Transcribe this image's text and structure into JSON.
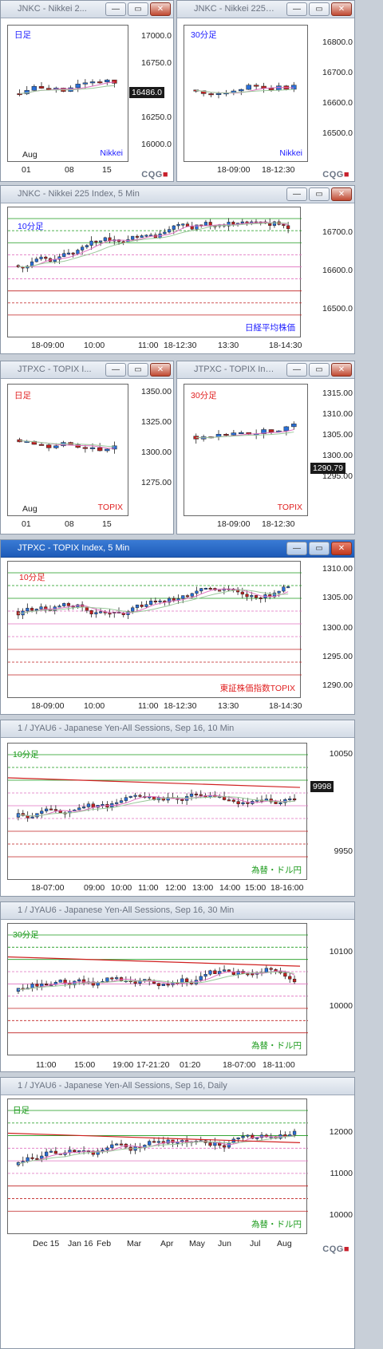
{
  "windows": [
    {
      "id": "w1",
      "title": "JNKC - Nikkei 2...",
      "label": "日足",
      "label_color": "#2020ff",
      "name": "Nikkei",
      "name_color": "#2020ff",
      "price": "16486.0",
      "yticks": [
        "17000.0",
        "16750.0",
        "16250.0",
        "16000.0"
      ],
      "xticks": [
        "01",
        "08",
        "15"
      ],
      "xnote": "Aug"
    },
    {
      "id": "w2",
      "title": "JNKC - Nikkei 225 ...",
      "label": "30分足",
      "label_color": "#2020ff",
      "name": "Nikkei",
      "name_color": "#2020ff",
      "yticks": [
        "16800.0",
        "16700.0",
        "16600.0",
        "16500.0"
      ],
      "xticks": [
        "18-09:00",
        "18-12:30"
      ]
    },
    {
      "id": "w3",
      "title": "JNKC - Nikkei 225 Index, 5 Min",
      "label": "10分足",
      "label_color": "#2020ff",
      "name": "日経平均株価",
      "name_color": "#2020ff",
      "yticks": [
        "16700.0",
        "16600.0",
        "16500.0"
      ],
      "xticks": [
        "18-09:00",
        "10:00",
        "11:00",
        "18-12:30",
        "13:30",
        "18-14:30"
      ]
    },
    {
      "id": "w4",
      "title": "JTPXC - TOPIX I...",
      "label": "日足",
      "label_color": "#e02020",
      "name": "TOPIX",
      "name_color": "#e02020",
      "yticks": [
        "1350.00",
        "1325.00",
        "1300.00",
        "1275.00"
      ],
      "xticks": [
        "01",
        "08",
        "15"
      ],
      "xnote": "Aug"
    },
    {
      "id": "w5",
      "title": "JTPXC - TOPIX Ind...",
      "label": "30分足",
      "label_color": "#e02020",
      "name": "TOPIX",
      "name_color": "#e02020",
      "price": "1290.79",
      "yticks": [
        "1315.00",
        "1310.00",
        "1305.00",
        "1300.00",
        "1295.00"
      ],
      "xticks": [
        "18-09:00",
        "18-12:30"
      ]
    },
    {
      "id": "w6",
      "title": "JTPXC - TOPIX Index, 5 Min",
      "label": "10分足",
      "label_color": "#e02020",
      "name": "東証株価指数TOPIX",
      "name_color": "#e02020",
      "yticks": [
        "1310.00",
        "1305.00",
        "1300.00",
        "1295.00",
        "1290.00"
      ],
      "xticks": [
        "18-09:00",
        "10:00",
        "11:00",
        "18-12:30",
        "13:30",
        "18-14:30"
      ]
    },
    {
      "id": "w7",
      "title": "1 / JYAU6 - Japanese Yen-All Sessions, Sep 16, 10 Min",
      "label": "10分足",
      "label_color": "#1a9a1a",
      "name": "為替・ドル円",
      "name_color": "#1a9a1a",
      "price": "9998",
      "yticks": [
        "10050",
        "9950"
      ],
      "xticks": [
        "18-07:00",
        "09:00",
        "10:00",
        "11:00",
        "12:00",
        "13:00",
        "14:00",
        "15:00",
        "18-16:00"
      ]
    },
    {
      "id": "w8",
      "title": "1 / JYAU6 - Japanese Yen-All Sessions, Sep 16, 30 Min",
      "label": "30分足",
      "label_color": "#1a9a1a",
      "name": "為替・ドル円",
      "name_color": "#1a9a1a",
      "yticks": [
        "10100",
        "10000"
      ],
      "xticks": [
        "11:00",
        "15:00",
        "19:00",
        "17-21:20",
        "01:20",
        "18-07:00",
        "18-11:00"
      ]
    },
    {
      "id": "w9",
      "title": "1 / JYAU6 - Japanese Yen-All Sessions, Sep 16, Daily",
      "label": "日足",
      "label_color": "#1a9a1a",
      "name": "為替・ドル円",
      "name_color": "#1a9a1a",
      "yticks": [
        "12000",
        "11000",
        "10000"
      ],
      "xticks": [
        "Dec 15",
        "Jan 16",
        "Feb",
        "Mar",
        "Apr",
        "May",
        "Jun",
        "Jul",
        "Aug"
      ]
    }
  ],
  "buttons": {
    "minimize": "—",
    "restore": "▭",
    "close": "✕"
  },
  "brand": "CQG",
  "colors": {
    "up": "#2a6fd6",
    "down": "#c02020",
    "bg": "#ffffff",
    "titlebar": "#d3dbe6",
    "active_titlebar": "#1e5bb8"
  }
}
